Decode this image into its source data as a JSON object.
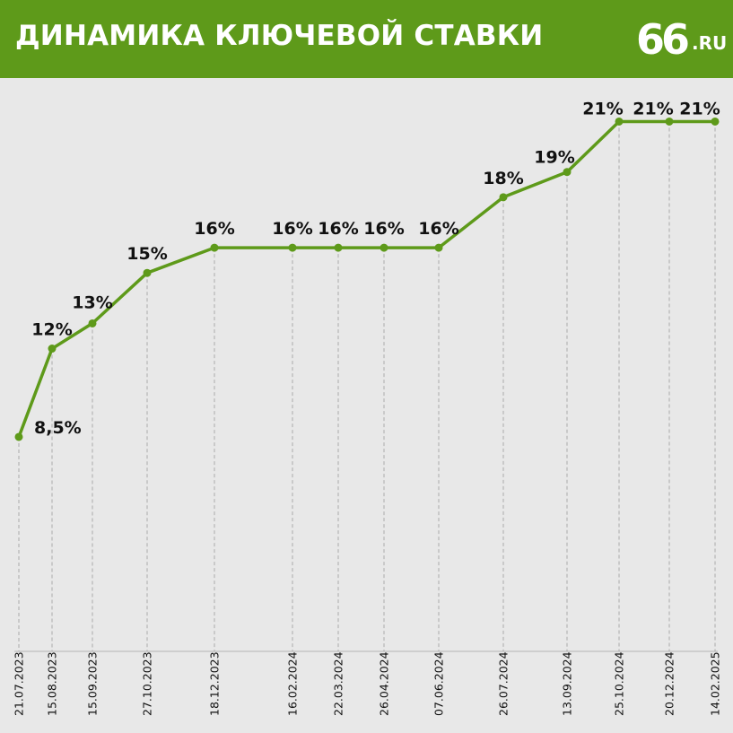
{
  "header": {
    "title": "ДИНАМИКА КЛЮЧЕВОЙ СТАВКИ",
    "logo_number": "66",
    "logo_domain": ".RU"
  },
  "colors": {
    "brand": "#5e9a1a",
    "line": "#5e9a1a",
    "background": "#e8e8e8",
    "text": "#111111",
    "grid": "#aaaaaa"
  },
  "chart_data": {
    "type": "line",
    "title": "ДИНАМИКА КЛЮЧЕВОЙ СТАВКИ",
    "xlabel": "",
    "ylabel": "",
    "ylim": [
      0,
      24.5
    ],
    "grid": "vertical dashed lines at each date",
    "legend": "none",
    "x": [
      "21.07.2023",
      "15.08.2023",
      "15.09.2023",
      "27.10.2023",
      "18.12.2023",
      "16.02.2024",
      "22.03.2024",
      "26.04.2024",
      "07.06.2024",
      "26.07.2024",
      "13.09.2024",
      "25.10.2024",
      "20.12.2024",
      "14.02.2025"
    ],
    "values": [
      8.5,
      12,
      13,
      15,
      16,
      16,
      16,
      16,
      16,
      18,
      19,
      21,
      21,
      21
    ],
    "labels": [
      "8,5%",
      "12%",
      "13%",
      "15%",
      "16%",
      "16%",
      "16%",
      "16%",
      "16%",
      "18%",
      "19%",
      "21%",
      "21%",
      "21%"
    ]
  }
}
